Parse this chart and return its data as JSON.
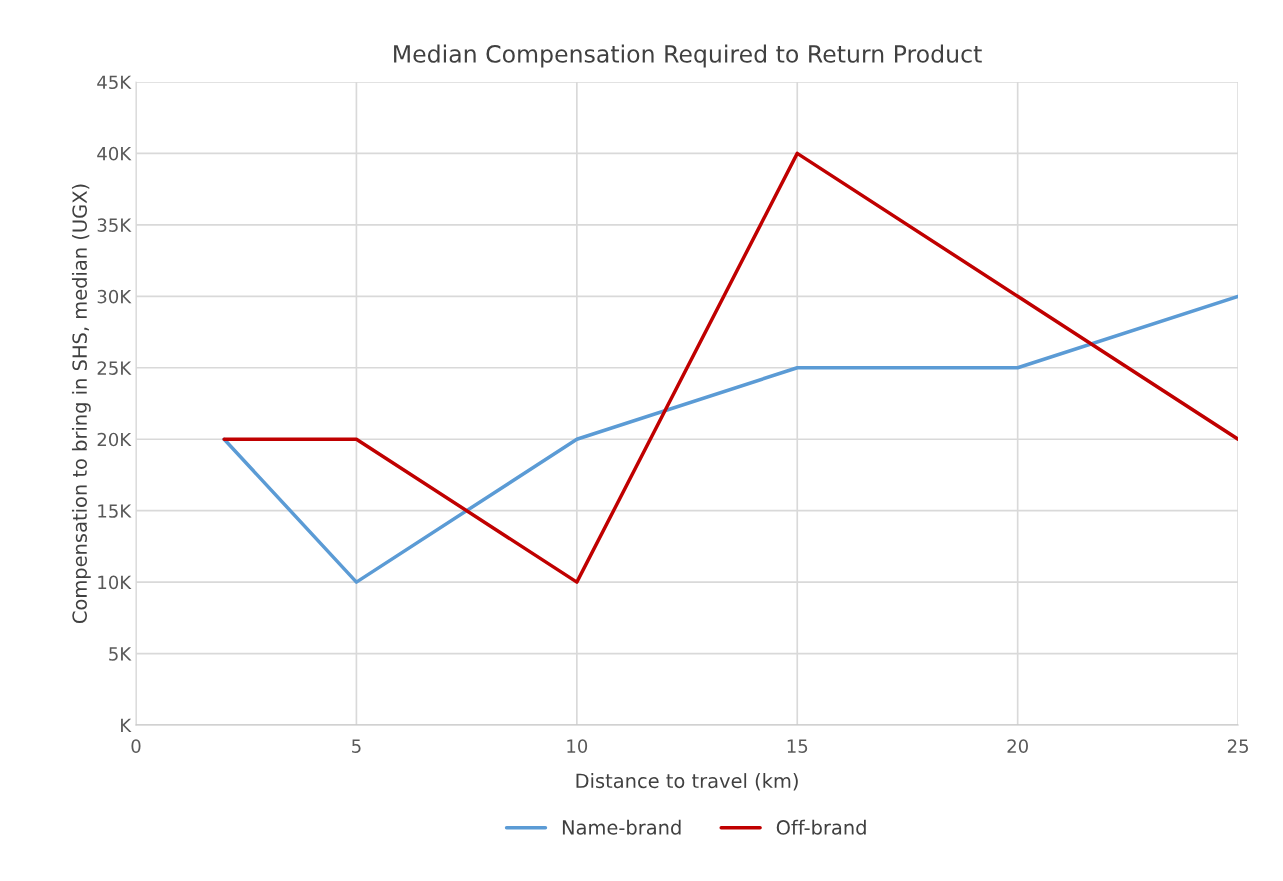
{
  "chart_data": {
    "type": "line",
    "title": "Median Compensation Required to Return Product",
    "xlabel": "Distance to travel (km)",
    "ylabel": "Compensation to bring in SHS, median (UGX)",
    "x": [
      2,
      5,
      10,
      15,
      20,
      25
    ],
    "series": [
      {
        "name": "Name-brand",
        "color": "#5b9bd5",
        "values": [
          20000,
          10000,
          20000,
          25000,
          25000,
          30000
        ]
      },
      {
        "name": "Off-brand",
        "color": "#c00000",
        "values": [
          20000,
          20000,
          10000,
          40000,
          30000,
          20000
        ]
      }
    ],
    "xlim": [
      0,
      25
    ],
    "xticks": [
      0,
      5,
      10,
      15,
      20,
      25
    ],
    "ylim": [
      0,
      45000
    ],
    "yticks": [
      {
        "value": 0,
        "label": "K"
      },
      {
        "value": 5000,
        "label": "5K"
      },
      {
        "value": 10000,
        "label": "10K"
      },
      {
        "value": 15000,
        "label": "15K"
      },
      {
        "value": 20000,
        "label": "20K"
      },
      {
        "value": 25000,
        "label": "25K"
      },
      {
        "value": 30000,
        "label": "30K"
      },
      {
        "value": 35000,
        "label": "35K"
      },
      {
        "value": 40000,
        "label": "40K"
      },
      {
        "value": 45000,
        "label": "45K"
      }
    ],
    "grid": true,
    "legend": "bottom",
    "marker": "none",
    "line_style": "solid"
  }
}
